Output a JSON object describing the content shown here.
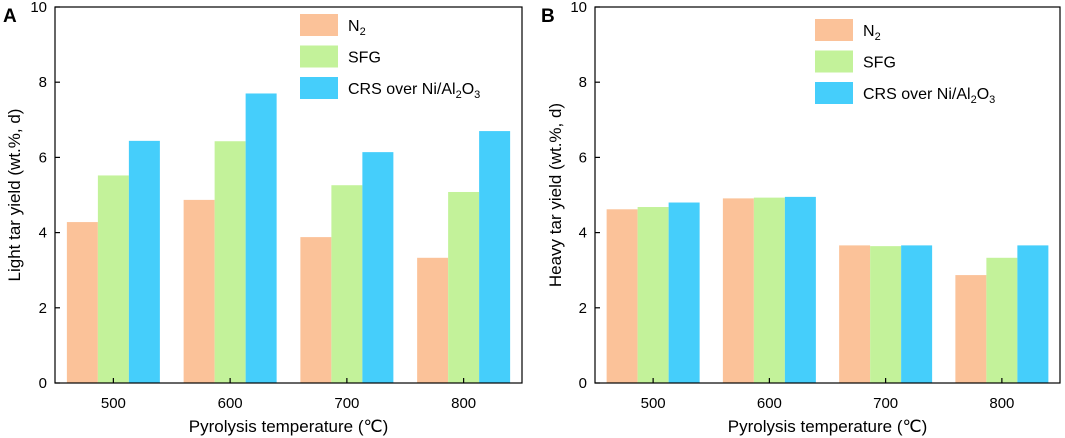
{
  "chart_data": [
    {
      "type": "bar",
      "panel": "A",
      "title": "",
      "xlabel": "Pyrolysis temperature (℃)",
      "ylabel": "Light tar yield (wt.%, d)",
      "ylim": [
        0,
        10
      ],
      "yticks": [
        0,
        2,
        4,
        6,
        8,
        10
      ],
      "categories": [
        "500",
        "600",
        "700",
        "800"
      ],
      "legend_position": "top-right",
      "series": [
        {
          "name": "N2",
          "label_main": "N",
          "label_sub": "2",
          "label_tail": "",
          "color": "#FBC299",
          "values": [
            4.28,
            4.87,
            3.88,
            3.33
          ]
        },
        {
          "name": "SFG",
          "label_main": "SFG",
          "label_sub": "",
          "label_tail": "",
          "color": "#C3F29A",
          "values": [
            5.52,
            6.43,
            5.26,
            5.08
          ]
        },
        {
          "name": "CRS over Ni/Al2O3",
          "label_main": "CRS over Ni/Al",
          "label_sub": "2",
          "label_mid": "O",
          "label_sub2": "3",
          "color": "#45CEFB",
          "values": [
            6.44,
            7.7,
            6.14,
            6.7
          ]
        }
      ]
    },
    {
      "type": "bar",
      "panel": "B",
      "title": "",
      "xlabel": "Pyrolysis temperature (℃)",
      "ylabel": "Heavy tar yield (wt.%, d)",
      "ylim": [
        0,
        10
      ],
      "yticks": [
        0,
        2,
        4,
        6,
        8,
        10
      ],
      "categories": [
        "500",
        "600",
        "700",
        "800"
      ],
      "legend_position": "top-right",
      "series": [
        {
          "name": "N2",
          "label_main": "N",
          "label_sub": "2",
          "label_tail": "",
          "color": "#FBC299",
          "values": [
            4.62,
            4.91,
            3.66,
            2.87
          ]
        },
        {
          "name": "SFG",
          "label_main": "SFG",
          "label_sub": "",
          "label_tail": "",
          "color": "#C3F29A",
          "values": [
            4.68,
            4.93,
            3.64,
            3.33
          ]
        },
        {
          "name": "CRS over Ni/Al2O3",
          "label_main": "CRS over Ni/Al",
          "label_sub": "2",
          "label_mid": "O",
          "label_sub2": "3",
          "color": "#45CEFB",
          "values": [
            4.8,
            4.95,
            3.66,
            3.66
          ]
        }
      ]
    }
  ]
}
